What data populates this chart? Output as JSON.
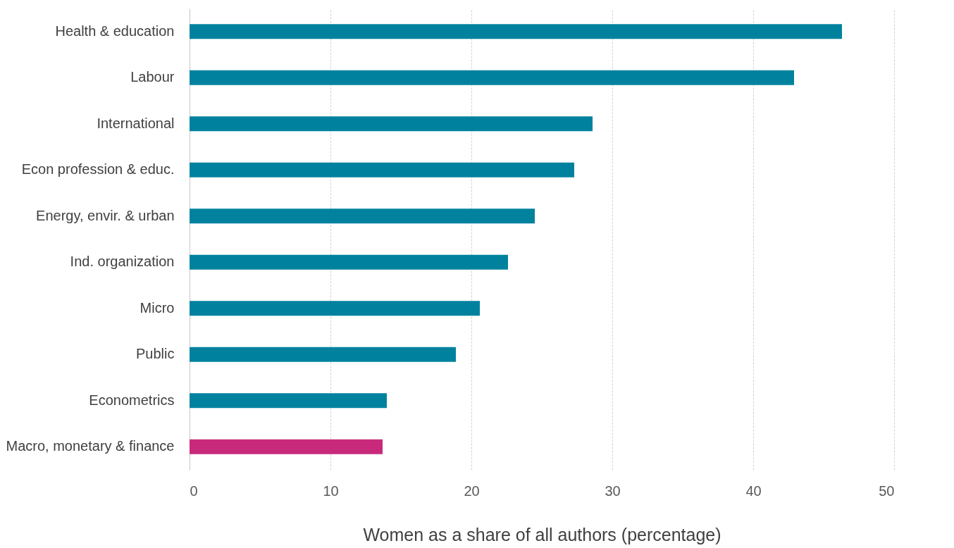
{
  "chart_data": {
    "type": "bar",
    "orientation": "horizontal",
    "xlabel": "Women as a share of all authors (percentage)",
    "categories": [
      "Health & education",
      "Labour",
      "International",
      "Econ profession & educ.",
      "Energy, envir. & urban",
      "Ind. organization",
      "Micro",
      "Public",
      "Econometrics",
      "Macro, monetary & finance"
    ],
    "values": [
      46.3,
      42.9,
      28.6,
      27.3,
      24.5,
      22.6,
      20.6,
      18.9,
      14.0,
      13.7
    ],
    "colors": [
      "#00829e",
      "#00829e",
      "#00829e",
      "#00829e",
      "#00829e",
      "#00829e",
      "#00829e",
      "#00829e",
      "#00829e",
      "#c8297a"
    ],
    "xlim": [
      0,
      50
    ],
    "xticks": [
      0,
      10,
      20,
      30,
      40,
      50
    ],
    "grid": "x",
    "legend": false
  }
}
